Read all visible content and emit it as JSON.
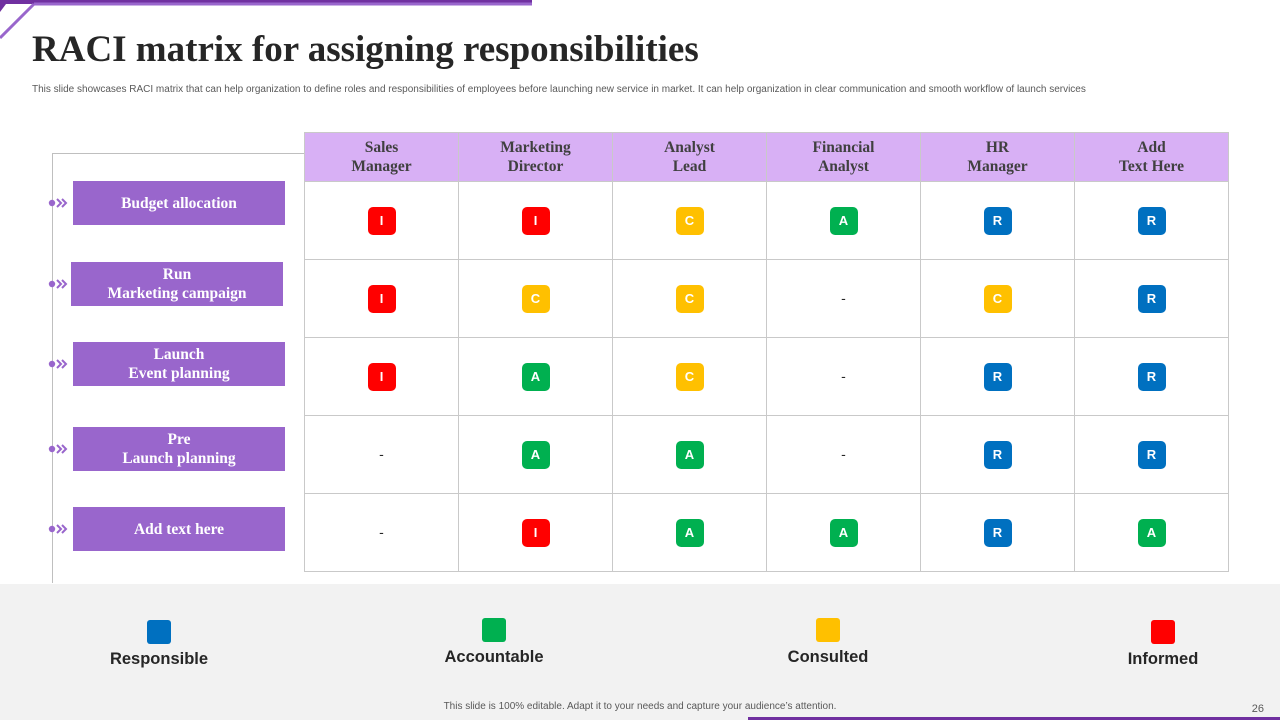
{
  "title": "RACI matrix for assigning responsibilities",
  "subtitle": "This slide showcases RACI matrix that can help organization to define roles and responsibilities of employees before launching new service in market. It can help organization in clear communication and smooth workflow of launch services",
  "columns": [
    "Sales\nManager",
    "Marketing\nDirector",
    "Analyst\nLead",
    "Financial\nAnalyst",
    "HR\nManager",
    "Add\nText Here"
  ],
  "rows": [
    {
      "label": "Budget allocation",
      "cells": [
        "I",
        "I",
        "C",
        "A",
        "R",
        "R"
      ]
    },
    {
      "label": "Run\nMarketing campaign",
      "cells": [
        "I",
        "C",
        "C",
        "-",
        "C",
        "R"
      ]
    },
    {
      "label": "Launch\nEvent planning",
      "cells": [
        "I",
        "A",
        "C",
        "-",
        "R",
        "R"
      ]
    },
    {
      "label": "Pre\nLaunch planning",
      "cells": [
        "-",
        "A",
        "A",
        "-",
        "R",
        "R"
      ]
    },
    {
      "label": "Add text here",
      "cells": [
        "-",
        "I",
        "A",
        "A",
        "R",
        "A"
      ]
    }
  ],
  "legend": [
    {
      "label": "Responsible",
      "color": "#0070c0"
    },
    {
      "label": "Accountable",
      "color": "#00b050"
    },
    {
      "label": "Consulted",
      "color": "#ffc000"
    },
    {
      "label": "Informed",
      "color": "#ff0000"
    }
  ],
  "colors": {
    "R": "#0070c0",
    "A": "#00b050",
    "C": "#ffc000",
    "I": "#ff0000",
    "label_bg": "#9966cc",
    "header_bg": "#d8b0f5"
  },
  "footer_note": "This slide is 100% editable. Adapt it to your needs and capture your audience’s attention.",
  "page_number": "26"
}
